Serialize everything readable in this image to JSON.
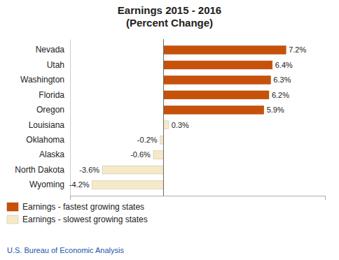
{
  "chart_data": {
    "type": "bar",
    "orientation": "horizontal",
    "title": "Earnings 2015 - 2016\n(Percent Change)",
    "categories": [
      "Nevada",
      "Utah",
      "Washington",
      "Florida",
      "Oregon",
      "Louisiana",
      "Oklahoma",
      "Alaska",
      "North Dakota",
      "Wyoming"
    ],
    "series": [
      {
        "name": "Earnings - fastest growing states",
        "color": "#c8510a",
        "values": [
          7.2,
          6.4,
          6.3,
          6.2,
          5.9,
          null,
          null,
          null,
          null,
          null
        ],
        "value_labels": [
          "7.2%",
          "6.4%",
          "6.3%",
          "6.2%",
          "5.9%",
          null,
          null,
          null,
          null,
          null
        ]
      },
      {
        "name": "Earnings - slowest growing states",
        "color": "#f5e9c8",
        "values": [
          null,
          null,
          null,
          null,
          null,
          0.3,
          -0.2,
          -0.6,
          -3.6,
          -4.2
        ],
        "value_labels": [
          null,
          null,
          null,
          null,
          null,
          "0.3%",
          "-0.2%",
          "-0.6%",
          "-3.6%",
          "-4.2%"
        ]
      }
    ],
    "xlim": [
      -5.5,
      9.5
    ],
    "data_labels": true,
    "tick_labels": "y",
    "grid": false,
    "legend": "lower left",
    "annotations": [
      "U.S. Bureau of Economic Analysis"
    ]
  }
}
